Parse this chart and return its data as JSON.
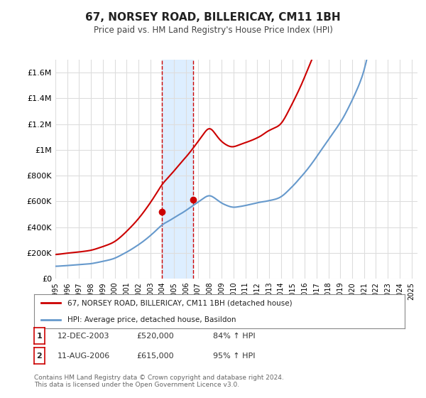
{
  "title": "67, NORSEY ROAD, BILLERICAY, CM11 1BH",
  "subtitle": "Price paid vs. HM Land Registry's House Price Index (HPI)",
  "ylabel_ticks": [
    "£0",
    "£200K",
    "£400K",
    "£600K",
    "£800K",
    "£1M",
    "£1.2M",
    "£1.4M",
    "£1.6M"
  ],
  "ytick_values": [
    0,
    200000,
    400000,
    600000,
    800000,
    1000000,
    1200000,
    1400000,
    1600000
  ],
  "ylim": [
    0,
    1700000
  ],
  "xlim_start": 1995.0,
  "xlim_end": 2025.5,
  "red_color": "#cc0000",
  "blue_color": "#6699cc",
  "highlight_fill": "#ddeeff",
  "marker1_x": 2003.95,
  "marker1_y": 520000,
  "marker2_x": 2006.6,
  "marker2_y": 615000,
  "vline1_x": 2003.95,
  "vline2_x": 2006.6,
  "legend_label_red": "67, NORSEY ROAD, BILLERICAY, CM11 1BH (detached house)",
  "legend_label_blue": "HPI: Average price, detached house, Basildon",
  "table_rows": [
    [
      "1",
      "12-DEC-2003",
      "£520,000",
      "84% ↑ HPI"
    ],
    [
      "2",
      "11-AUG-2006",
      "£615,000",
      "95% ↑ HPI"
    ]
  ],
  "footnote": "Contains HM Land Registry data © Crown copyright and database right 2024.\nThis data is licensed under the Open Government Licence v3.0.",
  "background_color": "#ffffff",
  "grid_color": "#dddddd"
}
